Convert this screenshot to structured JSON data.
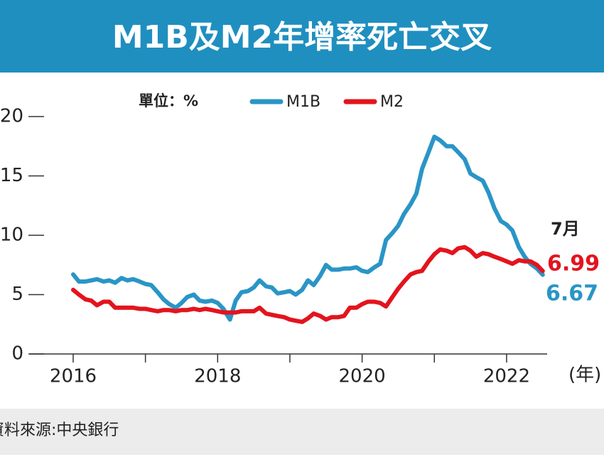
{
  "chart_data": {
    "type": "line",
    "title": "M1B及M2年增率死亡交叉",
    "unit_label": "單位：%",
    "x_unit_label": "(年)",
    "source": "資料來源:中央銀行",
    "annotation": "7月",
    "xlim": [
      2015.4,
      2022.65
    ],
    "xticks": [
      2016,
      2018,
      2020,
      2022
    ],
    "xminorticks": [
      2017,
      2019,
      2021
    ],
    "ylim": [
      0,
      20
    ],
    "yticks": [
      0,
      5,
      10,
      15,
      20
    ],
    "x": [
      2016.0,
      2016.08,
      2016.17,
      2016.25,
      2016.33,
      2016.42,
      2016.5,
      2016.58,
      2016.67,
      2016.75,
      2016.83,
      2016.92,
      2017.0,
      2017.08,
      2017.17,
      2017.25,
      2017.33,
      2017.42,
      2017.5,
      2017.58,
      2017.67,
      2017.75,
      2017.83,
      2017.92,
      2018.0,
      2018.08,
      2018.17,
      2018.25,
      2018.33,
      2018.42,
      2018.5,
      2018.58,
      2018.67,
      2018.75,
      2018.83,
      2018.92,
      2019.0,
      2019.08,
      2019.17,
      2019.25,
      2019.33,
      2019.42,
      2019.5,
      2019.58,
      2019.67,
      2019.75,
      2019.83,
      2019.92,
      2020.0,
      2020.08,
      2020.17,
      2020.25,
      2020.33,
      2020.42,
      2020.5,
      2020.58,
      2020.67,
      2020.75,
      2020.83,
      2020.92,
      2021.0,
      2021.08,
      2021.17,
      2021.25,
      2021.33,
      2021.42,
      2021.5,
      2021.58,
      2021.67,
      2021.75,
      2021.83,
      2021.92,
      2022.0,
      2022.08,
      2022.17,
      2022.25,
      2022.33,
      2022.42,
      2022.5
    ],
    "series": [
      {
        "name": "M1B",
        "color": "#2a95c6",
        "values": [
          6.7,
          6.1,
          6.1,
          6.2,
          6.3,
          6.1,
          6.2,
          6.0,
          6.4,
          6.2,
          6.3,
          6.1,
          5.9,
          5.8,
          5.2,
          4.6,
          4.2,
          3.9,
          4.3,
          4.8,
          5.0,
          4.5,
          4.4,
          4.5,
          4.3,
          3.8,
          2.9,
          4.5,
          5.2,
          5.3,
          5.6,
          6.2,
          5.7,
          5.6,
          5.1,
          5.2,
          5.3,
          5.0,
          5.4,
          6.2,
          5.8,
          6.6,
          7.5,
          7.1,
          7.1,
          7.2,
          7.2,
          7.3,
          7.0,
          6.9,
          7.3,
          7.6,
          9.6,
          10.2,
          10.8,
          11.8,
          12.6,
          13.5,
          15.6,
          17.0,
          18.3,
          18.0,
          17.5,
          17.5,
          17.0,
          16.4,
          15.2,
          14.9,
          14.6,
          13.6,
          12.3,
          11.2,
          10.9,
          10.4,
          9.0,
          8.2,
          7.6,
          7.2,
          6.67
        ]
      },
      {
        "name": "M2",
        "color": "#e3141d",
        "values": [
          5.4,
          5.0,
          4.6,
          4.5,
          4.1,
          4.4,
          4.4,
          3.9,
          3.9,
          3.9,
          3.9,
          3.8,
          3.8,
          3.7,
          3.6,
          3.7,
          3.7,
          3.6,
          3.7,
          3.7,
          3.8,
          3.7,
          3.8,
          3.7,
          3.6,
          3.5,
          3.5,
          3.5,
          3.6,
          3.6,
          3.6,
          3.9,
          3.4,
          3.3,
          3.2,
          3.1,
          2.9,
          2.8,
          2.7,
          3.0,
          3.4,
          3.2,
          2.9,
          3.1,
          3.1,
          3.2,
          3.9,
          3.9,
          4.2,
          4.4,
          4.4,
          4.3,
          4.0,
          4.8,
          5.5,
          6.1,
          6.7,
          6.9,
          7.0,
          7.8,
          8.4,
          8.8,
          8.7,
          8.5,
          8.9,
          9.0,
          8.7,
          8.2,
          8.5,
          8.4,
          8.2,
          8.0,
          7.8,
          7.6,
          7.9,
          7.8,
          7.8,
          7.5,
          6.99
        ]
      }
    ]
  }
}
